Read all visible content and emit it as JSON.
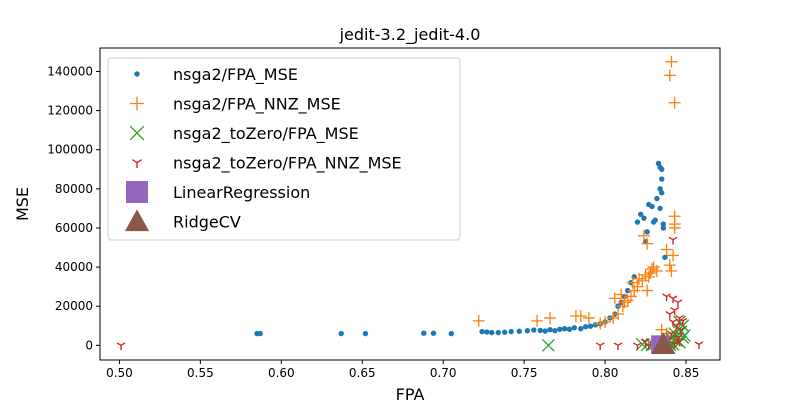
{
  "chart_data": {
    "type": "scatter",
    "title": "jedit-3.2_jedit-4.0",
    "xlabel": "FPA",
    "ylabel": "MSE",
    "xlim": [
      0.488,
      0.871
    ],
    "ylim": [
      -7500,
      152000
    ],
    "x_ticks": [
      0.5,
      0.55,
      0.6,
      0.65,
      0.7,
      0.75,
      0.8,
      0.85
    ],
    "x_tick_labels": [
      "0.50",
      "0.55",
      "0.60",
      "0.65",
      "0.70",
      "0.75",
      "0.80",
      "0.85"
    ],
    "y_ticks": [
      0,
      20000,
      40000,
      60000,
      80000,
      100000,
      120000,
      140000
    ],
    "y_tick_labels": [
      "0",
      "20000",
      "40000",
      "60000",
      "80000",
      "100000",
      "120000",
      "140000"
    ],
    "grid": false,
    "legend_position": "upper-left",
    "series": [
      {
        "name": "nsga2/FPA_MSE",
        "marker": "circle",
        "color": "#1f77b4",
        "points": [
          [
            0.585,
            6000
          ],
          [
            0.587,
            6000
          ],
          [
            0.637,
            6000
          ],
          [
            0.652,
            6000
          ],
          [
            0.688,
            6200
          ],
          [
            0.694,
            6200
          ],
          [
            0.705,
            6000
          ],
          [
            0.724,
            7000
          ],
          [
            0.727,
            6800
          ],
          [
            0.73,
            6500
          ],
          [
            0.734,
            6500
          ],
          [
            0.738,
            6700
          ],
          [
            0.742,
            7000
          ],
          [
            0.747,
            7200
          ],
          [
            0.752,
            7500
          ],
          [
            0.756,
            7800
          ],
          [
            0.76,
            7600
          ],
          [
            0.763,
            7300
          ],
          [
            0.766,
            8000
          ],
          [
            0.769,
            7500
          ],
          [
            0.772,
            8200
          ],
          [
            0.775,
            8500
          ],
          [
            0.778,
            8200
          ],
          [
            0.781,
            9000
          ],
          [
            0.785,
            8500
          ],
          [
            0.788,
            9500
          ],
          [
            0.791,
            9800
          ],
          [
            0.794,
            10500
          ],
          [
            0.797,
            11000
          ],
          [
            0.8,
            12000
          ],
          [
            0.803,
            14000
          ],
          [
            0.806,
            16000
          ],
          [
            0.808,
            20000
          ],
          [
            0.81,
            22000
          ],
          [
            0.812,
            25000
          ],
          [
            0.814,
            28000
          ],
          [
            0.816,
            32000
          ],
          [
            0.818,
            35000
          ],
          [
            0.82,
            63000
          ],
          [
            0.822,
            67000
          ],
          [
            0.824,
            65000
          ],
          [
            0.825,
            53000
          ],
          [
            0.826,
            58000
          ],
          [
            0.827,
            72000
          ],
          [
            0.829,
            71000
          ],
          [
            0.83,
            63000
          ],
          [
            0.831,
            64000
          ],
          [
            0.832,
            75000
          ],
          [
            0.833,
            93000
          ],
          [
            0.834,
            91000
          ],
          [
            0.835,
            90000
          ],
          [
            0.835,
            85000
          ],
          [
            0.834,
            80000
          ],
          [
            0.835,
            78000
          ],
          [
            0.836,
            62000
          ],
          [
            0.834,
            70000
          ],
          [
            0.836,
            60000
          ],
          [
            0.837,
            45000
          ]
        ]
      },
      {
        "name": "nsga2/FPA_NNZ_MSE",
        "marker": "plus",
        "color": "#ff7f0e",
        "points": [
          [
            0.841,
            145000
          ],
          [
            0.84,
            138000
          ],
          [
            0.843,
            124000
          ],
          [
            0.843,
            66000
          ],
          [
            0.843,
            62000
          ],
          [
            0.843,
            60000
          ],
          [
            0.838,
            49000
          ],
          [
            0.842,
            46000
          ],
          [
            0.84,
            41000
          ],
          [
            0.841,
            38000
          ],
          [
            0.824,
            56000
          ],
          [
            0.826,
            52000
          ],
          [
            0.83,
            40000
          ],
          [
            0.828,
            37000
          ],
          [
            0.827,
            35000
          ],
          [
            0.823,
            33000
          ],
          [
            0.82,
            30000
          ],
          [
            0.818,
            28000
          ],
          [
            0.816,
            25000
          ],
          [
            0.814,
            23000
          ],
          [
            0.811,
            20000
          ],
          [
            0.808,
            16000
          ],
          [
            0.805,
            14000
          ],
          [
            0.8,
            12000
          ],
          [
            0.797,
            11000
          ],
          [
            0.782,
            15000
          ],
          [
            0.785,
            15000
          ],
          [
            0.79,
            14000
          ],
          [
            0.766,
            14000
          ],
          [
            0.758,
            12500
          ],
          [
            0.722,
            12500
          ],
          [
            0.81,
            26000
          ],
          [
            0.806,
            24000
          ],
          [
            0.812,
            22000
          ],
          [
            0.817,
            32000
          ],
          [
            0.821,
            34000
          ],
          [
            0.825,
            36000
          ],
          [
            0.829,
            39000
          ],
          [
            0.832,
            38000
          ],
          [
            0.826,
            28000
          ],
          [
            0.835,
            8000
          ],
          [
            0.838,
            6000
          ],
          [
            0.845,
            3000
          ]
        ]
      },
      {
        "name": "nsga2_toZero/FPA_MSE",
        "marker": "x",
        "color": "#2ca02c",
        "points": [
          [
            0.765,
            0
          ],
          [
            0.823,
            500
          ],
          [
            0.826,
            200
          ],
          [
            0.829,
            300
          ],
          [
            0.833,
            800
          ],
          [
            0.836,
            1200
          ],
          [
            0.839,
            2000
          ],
          [
            0.841,
            3500
          ],
          [
            0.843,
            6000
          ],
          [
            0.845,
            9000
          ],
          [
            0.846,
            12000
          ],
          [
            0.847,
            7000
          ],
          [
            0.848,
            4000
          ],
          [
            0.846,
            1500
          ],
          [
            0.844,
            2500
          ],
          [
            0.842,
            500
          ],
          [
            0.84,
            300
          ],
          [
            0.848,
            10000
          ],
          [
            0.849,
            5000
          ],
          [
            0.837,
            200
          ]
        ]
      },
      {
        "name": "nsga2_toZero/FPA_NNZ_MSE",
        "marker": "tri_down",
        "color": "#d62728",
        "points": [
          [
            0.501,
            0
          ],
          [
            0.858,
            500
          ],
          [
            0.842,
            54000
          ],
          [
            0.838,
            25000
          ],
          [
            0.842,
            24000
          ],
          [
            0.845,
            22000
          ],
          [
            0.843,
            18000
          ],
          [
            0.84,
            16000
          ],
          [
            0.846,
            14000
          ],
          [
            0.842,
            12000
          ],
          [
            0.844,
            10000
          ],
          [
            0.847,
            8000
          ],
          [
            0.841,
            6000
          ],
          [
            0.845,
            4000
          ],
          [
            0.839,
            3000
          ],
          [
            0.836,
            1500
          ],
          [
            0.832,
            500
          ],
          [
            0.827,
            0
          ],
          [
            0.825,
            2000
          ],
          [
            0.82,
            0
          ],
          [
            0.808,
            0
          ],
          [
            0.797,
            0
          ],
          [
            0.848,
            12500
          ],
          [
            0.846,
            2000
          ],
          [
            0.843,
            800
          ]
        ]
      },
      {
        "name": "LinearRegression",
        "marker": "square",
        "color": "#9467bd",
        "points": [
          [
            0.834,
            500
          ]
        ]
      },
      {
        "name": "RidgeCV",
        "marker": "triangle_up",
        "color": "#8c564b",
        "points": [
          [
            0.836,
            500
          ]
        ]
      }
    ]
  }
}
